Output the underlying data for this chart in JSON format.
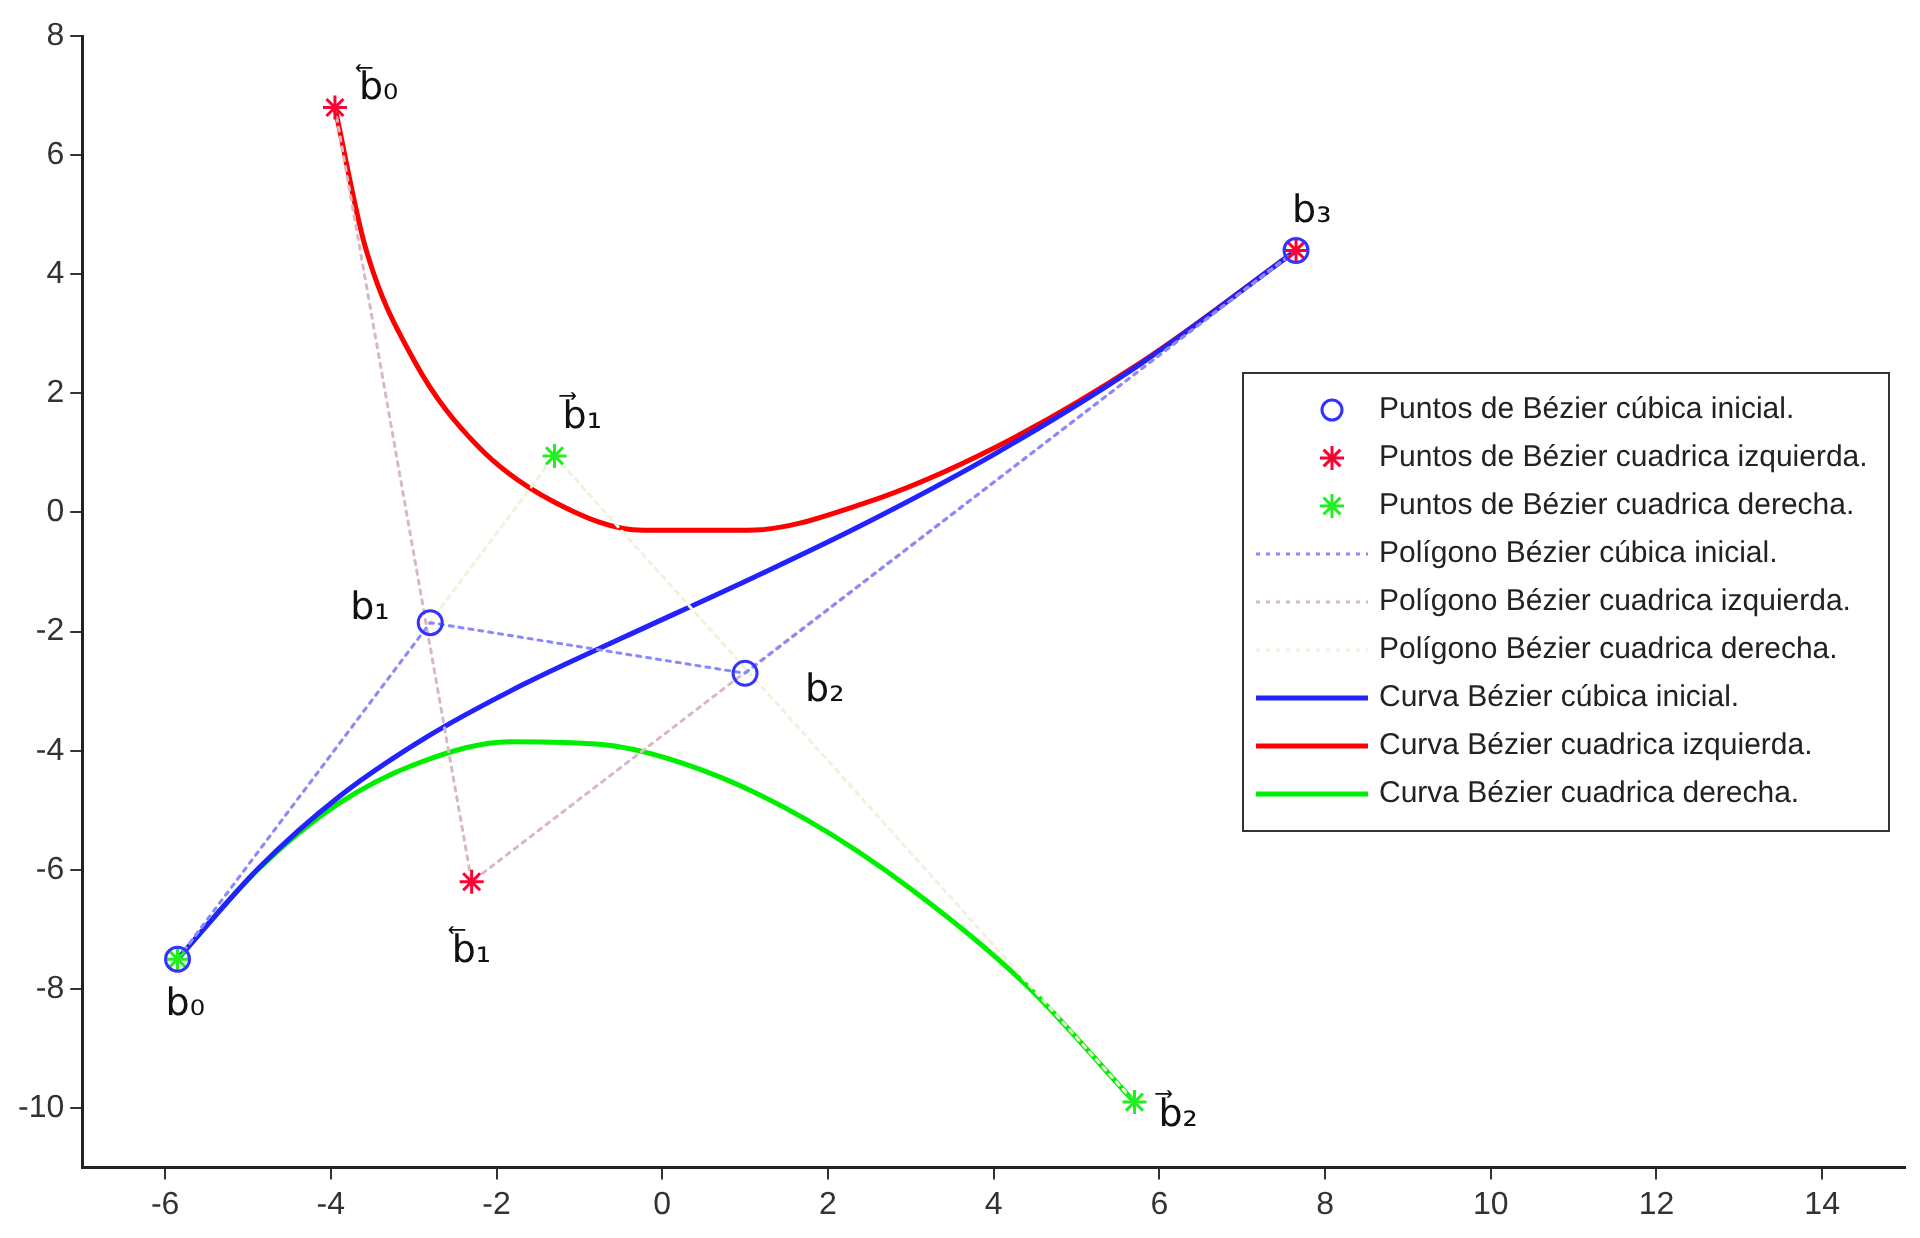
{
  "chart_data": {
    "type": "scatter",
    "xlim": [
      -7,
      15
    ],
    "xticks": [
      -6,
      -4,
      -2,
      0,
      2,
      4,
      6,
      8,
      10,
      12,
      14
    ],
    "ylim": [
      -11,
      8
    ],
    "yticks": [
      -10,
      -8,
      -6,
      -4,
      -2,
      0,
      2,
      4,
      6,
      8
    ],
    "legend": "right",
    "series": [
      {
        "name": "Puntos de Bézier cúbica inicial.",
        "marker": "circle",
        "color": "#3333ff",
        "x": [
          -5.85,
          -2.8,
          1,
          7.65
        ],
        "values": [
          -7.5,
          -1.85,
          -2.7,
          4.4
        ]
      },
      {
        "name": "Puntos de Bézier cuadrica izquierda.",
        "marker": "cross",
        "color": "#ff0033",
        "x": [
          -3.95,
          -2.3,
          7.65
        ],
        "values": [
          6.8,
          -6.2,
          4.4
        ]
      },
      {
        "name": "Puntos de Bézier cuadrica derecha.",
        "marker": "cross",
        "color": "#22ee22",
        "x": [
          -5.85,
          -1.3,
          5.7
        ],
        "values": [
          -7.5,
          0.95,
          -9.9
        ]
      },
      {
        "name": "Polígono Bézier cúbica inicial.",
        "type": "line",
        "line_style": "dotted",
        "marker": "none",
        "color": "#8888ff",
        "x": [
          -5.85,
          -2.8,
          1,
          7.65
        ],
        "values": [
          -7.5,
          -1.85,
          -2.7,
          4.4
        ]
      },
      {
        "name": "Polígono Bézier cuadrica izquierda.",
        "type": "line",
        "line_style": "dotted",
        "marker": "none",
        "color": "#d8b8c4",
        "x": [
          -3.95,
          -2.3,
          7.65
        ],
        "values": [
          6.8,
          -6.2,
          4.4
        ]
      },
      {
        "name": "Polígono Bézier cuadrica derecha.",
        "type": "line",
        "line_style": "dotted",
        "marker": "none",
        "color": "#f2f2dc",
        "x": [
          -5.85,
          -1.3,
          5.7
        ],
        "values": [
          -7.5,
          0.95,
          -9.9
        ]
      },
      {
        "name": "Curva Bézier cúbica inicial.",
        "type": "line",
        "line_style": "solid",
        "marker": "none",
        "color": "#2222ff",
        "x": [
          -5.85,
          -4.87,
          -3.89,
          -2.83,
          -1.68,
          -0.44,
          0.92,
          2.4,
          4.01,
          5.78,
          7.65
        ],
        "values": [
          -7.5,
          -5.97,
          -4.76,
          -3.76,
          -2.89,
          -2.08,
          -1.21,
          -0.22,
          0.98,
          2.5,
          4.4
        ]
      },
      {
        "name": "Curva Bézier cuadrica izquierda.",
        "type": "line",
        "line_style": "solid",
        "marker": "none",
        "color": "#ff0000",
        "x": [
          -3.95,
          -3.58,
          -2.99,
          -2.23,
          -1.31,
          -0.23,
          1.03,
          2.45,
          4.03,
          5.78,
          7.65
        ],
        "values": [
          6.8,
          4.44,
          2.54,
          1.12,
          0.18,
          -0.3,
          -0.3,
          0.16,
          1.1,
          2.52,
          4.4
        ]
      },
      {
        "name": "Curva Bézier cuadrica derecha.",
        "type": "line",
        "line_style": "solid",
        "marker": "none",
        "color": "#00ee00",
        "x": [
          -5.85,
          -4.89,
          -3.93,
          -2.91,
          -1.83,
          -0.7,
          0.49,
          1.73,
          3.03,
          4.39,
          5.7
        ],
        "values": [
          -7.5,
          -6.01,
          -4.91,
          -4.19,
          -3.85,
          -3.9,
          -4.33,
          -5.15,
          -6.35,
          -7.93,
          -9.9
        ]
      }
    ],
    "annotations": [
      {
        "text": "b₀",
        "x": -5.85,
        "y": -7.5
      },
      {
        "text": "b₁",
        "x": -2.8,
        "y": -1.85
      },
      {
        "text": "b₂",
        "x": 1,
        "y": -2.7
      },
      {
        "text": "b₃",
        "x": 7.65,
        "y": 4.4
      },
      {
        "text": "b⃖₀",
        "x": -3.95,
        "y": 6.8
      },
      {
        "text": "b⃖₁",
        "x": -2.3,
        "y": -6.2
      },
      {
        "text": "b⃗₁",
        "x": -1.3,
        "y": 0.95
      },
      {
        "text": "b⃗₂",
        "x": 5.7,
        "y": -9.9
      }
    ]
  }
}
